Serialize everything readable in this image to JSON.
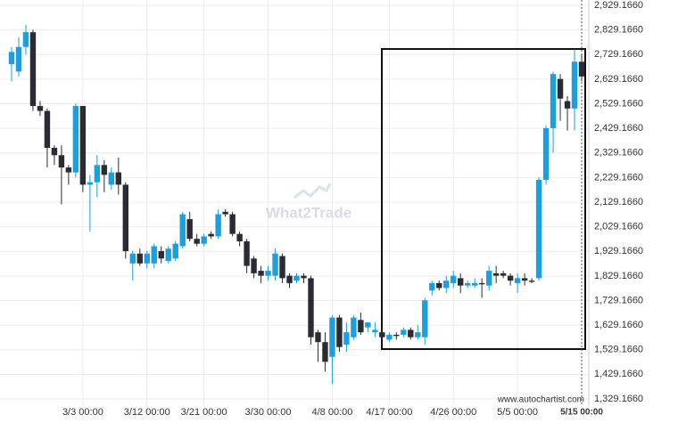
{
  "chart_data": {
    "type": "candlestick",
    "watermark": "What2Trade",
    "source": "www.autochartist.com",
    "categories": [
      null,
      null,
      null,
      null,
      null,
      null,
      null,
      null,
      null,
      null,
      "3/3 00:00",
      null,
      null,
      null,
      null,
      null,
      null,
      null,
      null,
      "3/12 00:00",
      null,
      null,
      null,
      null,
      null,
      null,
      null,
      "3/21 00:00",
      null,
      null,
      null,
      null,
      null,
      null,
      null,
      null,
      "3/30 00:00",
      null,
      null,
      null,
      null,
      null,
      null,
      null,
      null,
      "4/8 00:00",
      null,
      null,
      null,
      null,
      null,
      null,
      null,
      "4/17 00:00",
      null,
      null,
      null,
      null,
      null,
      null,
      null,
      null,
      "4/26 00:00",
      null,
      null,
      null,
      null,
      null,
      null,
      null,
      null,
      "5/5 00:00",
      null,
      null,
      null,
      null,
      null,
      null,
      null,
      null,
      "5/15 00:00"
    ],
    "open": [
      2690,
      2660,
      2760,
      2820,
      2520,
      2500,
      2350,
      2320,
      2270,
      2250,
      2520,
      2200,
      2210,
      2280,
      2200,
      2250,
      2200,
      1880,
      1920,
      1880,
      1880,
      1930,
      1890,
      1900,
      1950,
      2060,
      1980,
      1960,
      2000,
      1990,
      2090,
      2080,
      2000,
      1970,
      1900,
      1850,
      1830,
      1830,
      1910,
      1830,
      1810,
      1830,
      1820,
      1600,
      1560,
      1500,
      1660,
      1550,
      1580,
      1650,
      1620,
      1600,
      1600,
      1570,
      1590,
      1590,
      1610,
      1580,
      1580,
      1770,
      1800,
      1780,
      1800,
      1820,
      1790,
      1790,
      1800,
      1790,
      1840,
      1840,
      1830,
      1800,
      1820,
      1810,
      1820,
      2220,
      2430,
      2630,
      2540,
      2510,
      2700
    ],
    "high": [
      2760,
      2800,
      2850,
      2830,
      2540,
      2510,
      2360,
      2360,
      2280,
      2530,
      2520,
      2240,
      2320,
      2300,
      2270,
      2310,
      2210,
      1930,
      1940,
      1930,
      1960,
      1950,
      1950,
      1970,
      2090,
      2090,
      2000,
      2000,
      2010,
      2100,
      2100,
      2090,
      2010,
      1980,
      1910,
      1870,
      1870,
      1940,
      1920,
      1840,
      1840,
      1840,
      1830,
      1610,
      1600,
      1670,
      1670,
      1640,
      1670,
      1680,
      1640,
      1640,
      1610,
      1600,
      1600,
      1620,
      1620,
      1630,
      1740,
      1810,
      1810,
      1830,
      1850,
      1840,
      1810,
      1820,
      1820,
      1870,
      1870,
      1850,
      1840,
      1840,
      1840,
      1820,
      2230,
      2440,
      2660,
      2650,
      2560,
      2750,
      2730
    ],
    "low": [
      2620,
      2640,
      2730,
      2500,
      2480,
      2270,
      2280,
      2120,
      2200,
      2230,
      2170,
      2010,
      2150,
      2170,
      2180,
      2160,
      1900,
      1810,
      1870,
      1860,
      1860,
      1880,
      1880,
      1890,
      1940,
      1970,
      1950,
      1950,
      1980,
      1980,
      2070,
      1990,
      1950,
      1840,
      1820,
      1800,
      1810,
      1810,
      1800,
      1780,
      1800,
      1800,
      1550,
      1480,
      1440,
      1390,
      1520,
      1520,
      1570,
      1590,
      1600,
      1580,
      1570,
      1560,
      1570,
      1580,
      1570,
      1570,
      1550,
      1750,
      1770,
      1760,
      1780,
      1760,
      1780,
      1780,
      1740,
      1770,
      1800,
      1820,
      1790,
      1760,
      1790,
      1800,
      1810,
      2200,
      2330,
      2460,
      2420,
      2420,
      2620
    ],
    "close": [
      2740,
      2760,
      2820,
      2520,
      2500,
      2350,
      2320,
      2270,
      2250,
      2520,
      2200,
      2210,
      2280,
      2240,
      2250,
      2200,
      1930,
      1920,
      1880,
      1920,
      1950,
      1900,
      1940,
      1960,
      2080,
      1980,
      1960,
      1990,
      1990,
      2080,
      2080,
      2000,
      1970,
      1870,
      1840,
      1830,
      1850,
      1920,
      1820,
      1800,
      1830,
      1820,
      1580,
      1560,
      1480,
      1660,
      1540,
      1600,
      1660,
      1600,
      1640,
      1610,
      1580,
      1590,
      1585,
      1610,
      1580,
      1600,
      1730,
      1800,
      1780,
      1810,
      1830,
      1790,
      1800,
      1800,
      1795,
      1850,
      1830,
      1830,
      1810,
      1820,
      1810,
      1805,
      2220,
      2430,
      2650,
      2550,
      2510,
      2700,
      2640
    ],
    "colors": {
      "up": "#1a9fe0",
      "down": "#2b2b35"
    },
    "ylim": [
      1300,
      2951
    ],
    "yticks": [
      {
        "value": 1329.166,
        "label": "1,329.1660"
      },
      {
        "value": 1429.166,
        "label": "1,429.1660"
      },
      {
        "value": 1529.166,
        "label": "1,529.1660"
      },
      {
        "value": 1629.166,
        "label": "1,629.1660"
      },
      {
        "value": 1729.166,
        "label": "1,729.1660"
      },
      {
        "value": 1829.166,
        "label": "1,829.1660"
      },
      {
        "value": 1929.166,
        "label": "1,929.1660"
      },
      {
        "value": 2029.166,
        "label": "2,029.1660"
      },
      {
        "value": 2129.166,
        "label": "2,129.1660"
      },
      {
        "value": 2229.166,
        "label": "2,229.1660"
      },
      {
        "value": 2329.166,
        "label": "2,329.1660"
      },
      {
        "value": 2429.166,
        "label": "2,429.1660"
      },
      {
        "value": 2529.166,
        "label": "2,529.1660"
      },
      {
        "value": 2629.166,
        "label": "2,629.1660"
      },
      {
        "value": 2729.166,
        "label": "2,729.1660"
      },
      {
        "value": 2829.166,
        "label": "2,829.1660"
      },
      {
        "value": 2929.166,
        "label": "2,929.1660"
      }
    ],
    "grid": true
  }
}
